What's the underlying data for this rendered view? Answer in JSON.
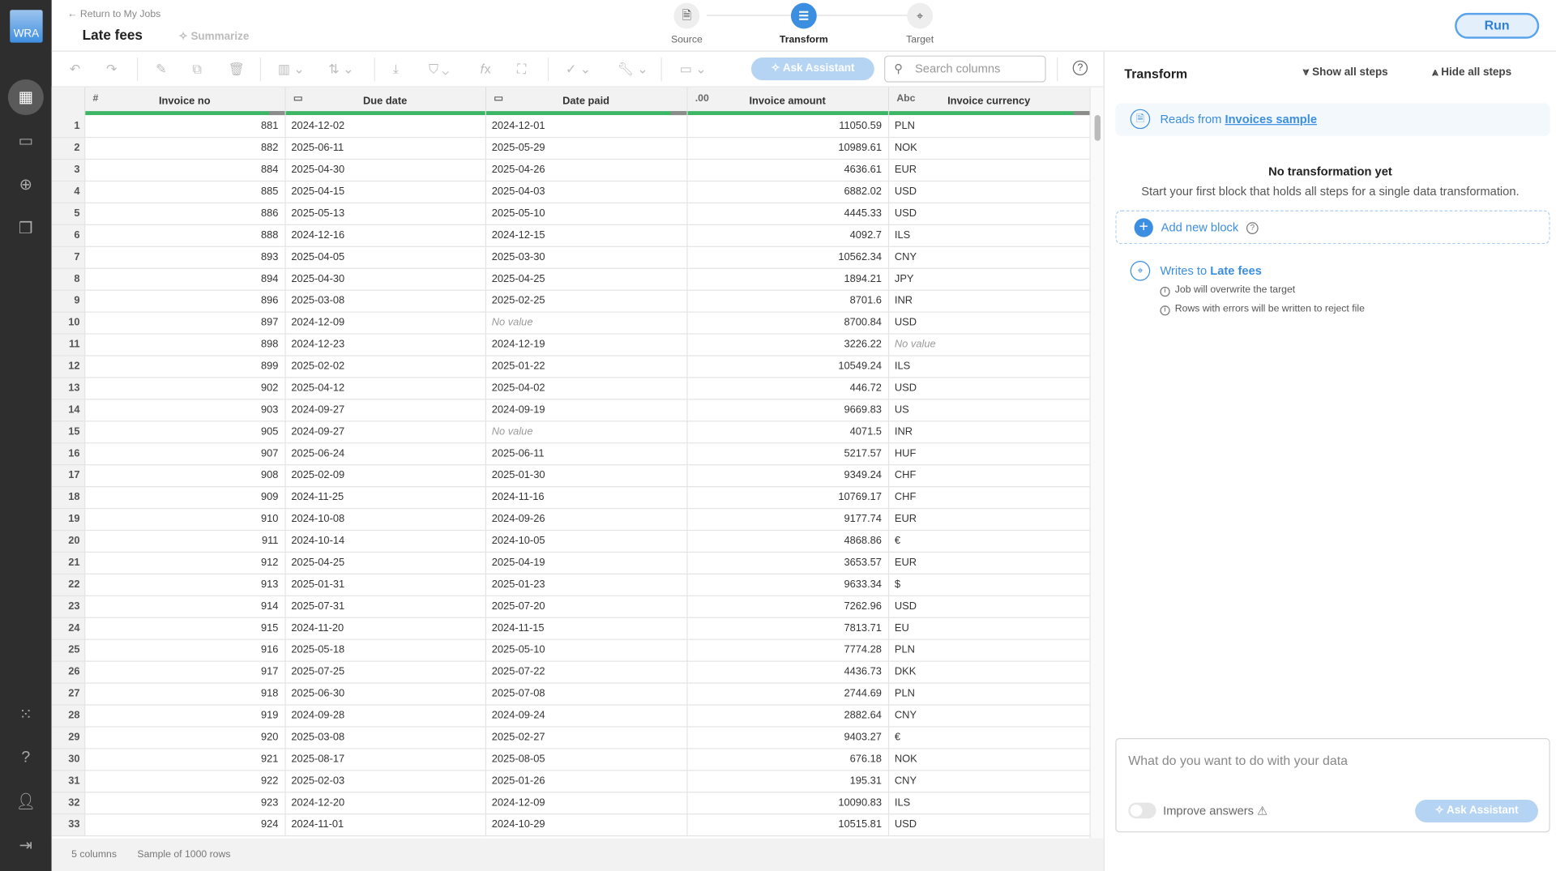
{
  "app": {
    "logo": "WRA"
  },
  "header": {
    "back": "← Return to My Jobs",
    "title": "Late fees",
    "summarize": "Summarize",
    "run": "Run",
    "steps": [
      {
        "label": "Source",
        "icon": "document-icon"
      },
      {
        "label": "Transform",
        "icon": "list-icon",
        "active": true
      },
      {
        "label": "Target",
        "icon": "target-icon"
      }
    ]
  },
  "toolbar": {
    "ask_assistant": "Ask Assistant",
    "search_placeholder": "Search columns"
  },
  "table": {
    "columns": [
      {
        "type": "#",
        "name": "Invoice no"
      },
      {
        "type": "date",
        "name": "Due date"
      },
      {
        "type": "date",
        "name": "Date paid"
      },
      {
        "type": ".00",
        "name": "Invoice amount"
      },
      {
        "type": "Abc",
        "name": "Invoice currency"
      }
    ],
    "rows": [
      [
        881,
        "2024-12-02",
        "2024-12-01",
        "11050.59",
        "PLN"
      ],
      [
        882,
        "2025-06-11",
        "2025-05-29",
        "10989.61",
        "NOK"
      ],
      [
        884,
        "2025-04-30",
        "2025-04-26",
        "4636.61",
        "EUR"
      ],
      [
        885,
        "2025-04-15",
        "2025-04-03",
        "6882.02",
        "USD"
      ],
      [
        886,
        "2025-05-13",
        "2025-05-10",
        "4445.33",
        "USD"
      ],
      [
        888,
        "2024-12-16",
        "2024-12-15",
        "4092.7",
        "ILS"
      ],
      [
        893,
        "2025-04-05",
        "2025-03-30",
        "10562.34",
        "CNY"
      ],
      [
        894,
        "2025-04-30",
        "2025-04-25",
        "1894.21",
        "JPY"
      ],
      [
        896,
        "2025-03-08",
        "2025-02-25",
        "8701.6",
        "INR"
      ],
      [
        897,
        "2024-12-09",
        null,
        "8700.84",
        "USD"
      ],
      [
        898,
        "2024-12-23",
        "2024-12-19",
        "3226.22",
        null
      ],
      [
        899,
        "2025-02-02",
        "2025-01-22",
        "10549.24",
        "ILS"
      ],
      [
        902,
        "2025-04-12",
        "2025-04-02",
        "446.72",
        "USD"
      ],
      [
        903,
        "2024-09-27",
        "2024-09-19",
        "9669.83",
        "US"
      ],
      [
        905,
        "2024-09-27",
        null,
        "4071.5",
        "INR"
      ],
      [
        907,
        "2025-06-24",
        "2025-06-11",
        "5217.57",
        "HUF"
      ],
      [
        908,
        "2025-02-09",
        "2025-01-30",
        "9349.24",
        "CHF"
      ],
      [
        909,
        "2024-11-25",
        "2024-11-16",
        "10769.17",
        "CHF"
      ],
      [
        910,
        "2024-10-08",
        "2024-09-26",
        "9177.74",
        "EUR"
      ],
      [
        911,
        "2024-10-14",
        "2024-10-05",
        "4868.86",
        "€"
      ],
      [
        912,
        "2025-04-25",
        "2025-04-19",
        "3653.57",
        "EUR"
      ],
      [
        913,
        "2025-01-31",
        "2025-01-23",
        "9633.34",
        "$"
      ],
      [
        914,
        "2025-07-31",
        "2025-07-20",
        "7262.96",
        "USD"
      ],
      [
        915,
        "2024-11-20",
        "2024-11-15",
        "7813.71",
        "EU"
      ],
      [
        916,
        "2025-05-18",
        "2025-05-10",
        "7774.28",
        "PLN"
      ],
      [
        917,
        "2025-07-25",
        "2025-07-22",
        "4436.73",
        "DKK"
      ],
      [
        918,
        "2025-06-30",
        "2025-07-08",
        "2744.69",
        "PLN"
      ],
      [
        919,
        "2024-09-28",
        "2024-09-24",
        "2882.64",
        "CNY"
      ],
      [
        920,
        "2025-03-08",
        "2025-02-27",
        "9403.27",
        "€"
      ],
      [
        921,
        "2025-08-17",
        "2025-08-05",
        "676.18",
        "NOK"
      ],
      [
        922,
        "2025-02-03",
        "2025-01-26",
        "195.31",
        "CNY"
      ],
      [
        923,
        "2024-12-20",
        "2024-12-09",
        "10090.83",
        "ILS"
      ],
      [
        924,
        "2024-11-01",
        "2024-10-29",
        "10515.81",
        "USD"
      ]
    ],
    "no_value": "No value"
  },
  "footer": {
    "columns": "5 columns",
    "sample": "Sample of 1000 rows"
  },
  "panel": {
    "title": "Transform",
    "show_all": "Show all steps",
    "hide_all": "Hide all steps",
    "reads_prefix": "Reads from",
    "reads_source": "Invoices sample",
    "empty_title": "No transformation yet",
    "empty_text": "Start your first block that holds all steps for a single data transformation.",
    "add_block": "Add new block",
    "writes_prefix": "Writes to",
    "writes_target": "Late fees",
    "notes": [
      "Job will overwrite the target",
      "Rows with errors will be written to reject file"
    ],
    "chat_placeholder": "What do you want to do with your data",
    "improve": "Improve answers",
    "ask_assistant": "Ask Assistant"
  },
  "colors": {
    "accent": "#3b8ee0",
    "quality_good": "#3cb665",
    "sidebar": "#2e2e2e"
  }
}
